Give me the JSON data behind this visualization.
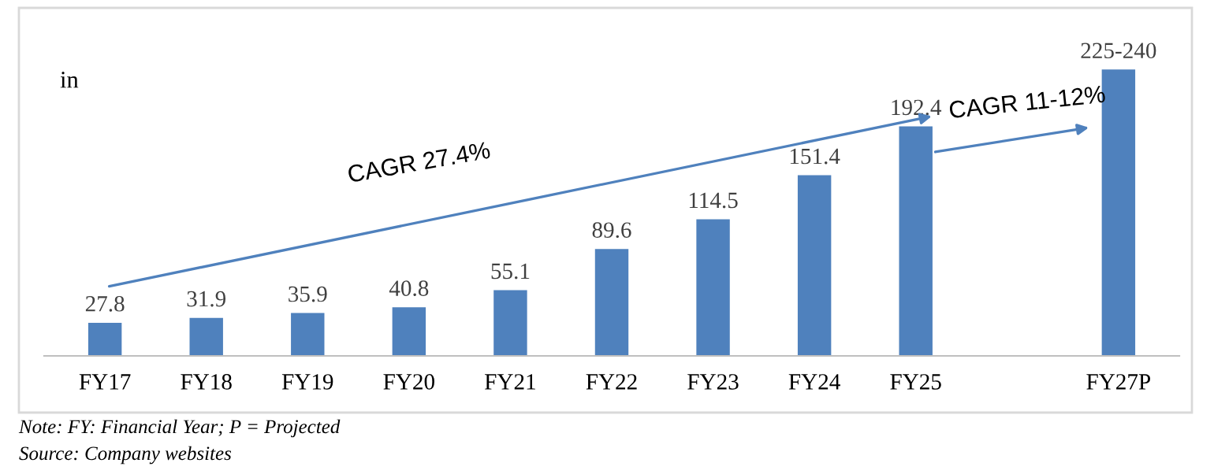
{
  "chart_data": {
    "type": "bar",
    "categories": [
      "FY17",
      "FY18",
      "FY19",
      "FY20",
      "FY21",
      "FY22",
      "FY23",
      "FY24",
      "FY25",
      null,
      "FY27P"
    ],
    "values": [
      27.8,
      31.9,
      35.9,
      40.8,
      55.1,
      89.6,
      114.5,
      151.4,
      192.4,
      null,
      240
    ],
    "value_labels": [
      "27.8",
      "31.9",
      "35.9",
      "40.8",
      "55.1",
      "89.6",
      "114.5",
      "151.4",
      "192.4",
      null,
      "225-240"
    ],
    "color": "#4f81bd",
    "ylabel": "in",
    "annotations": [
      "CAGR 27.4%",
      "CAGR 11-12%",
      "Note: FY: Financial Year; P = Projected",
      "Source: Company websites"
    ],
    "grid": false
  }
}
